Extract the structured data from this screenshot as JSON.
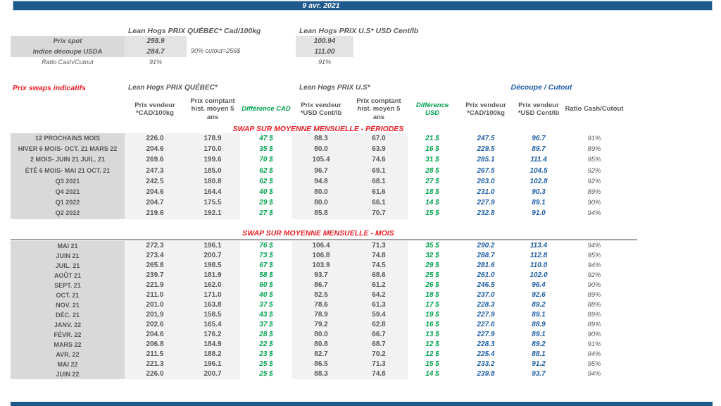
{
  "date": "9 avr. 2021",
  "summary": {
    "quebec_title": "Lean Hogs PRIX QUÉBEC* Cad/100kg",
    "us_title": "Lean Hogs PRIX U.S* USD Cent/lb",
    "spot_label": "Prix spot",
    "spot_qc": "258.9",
    "spot_us": "100.94",
    "cutout_label": "Indice découpe USDA",
    "cutout_qc": "284.7",
    "cutout_us": "111.00",
    "ratio_label": "Ratio Cash/Cutout",
    "ratio_qc": "91%",
    "ratio_us": "91%",
    "cutout_note": "90% cutout=256$"
  },
  "swaps": {
    "title": "Prix swaps indicatifs",
    "quebec_header": "Lean Hogs PRIX QUÉBEC*",
    "us_header": "Lean Hogs PRIX U.S*",
    "decoupe_header": "Découpe / Cutout",
    "columns": [
      "Prix vendeur *CAD/100kg",
      "Prix comptant hist. moyen 5 ans",
      "Différence CAD",
      "Prix vendeur *USD Cent/lb",
      "Prix comptant hist. moyen 5 ans",
      "Différence USD",
      "Prix vendeur *CAD/100kg",
      "Prix vendeur *USD Cent/lb",
      "Ratio Cash/Cutout"
    ],
    "sections": [
      {
        "banner": "SWAP SUR MOYENNE MENSUELLE - PÉRIODES",
        "rows": [
          [
            "12 PROCHAINS MOIS",
            "226.0",
            "178.9",
            "47 $",
            "88.3",
            "67.0",
            "21 $",
            "247.5",
            "96.7",
            "91%"
          ],
          [
            "HIVER 6 MOIS- OCT. 21 MARS 22",
            "204.6",
            "170.0",
            "35 $",
            "80.0",
            "63.9",
            "16 $",
            "229.5",
            "89.7",
            "89%"
          ],
          [
            "2 MOIS- JUIN 21 JUIL. 21",
            "269.6",
            "199.6",
            "70 $",
            "105.4",
            "74.6",
            "31 $",
            "285.1",
            "111.4",
            "95%"
          ],
          [
            "ÉTÉ 6 MOIS- MAI 21 OCT. 21",
            "247.3",
            "185.0",
            "62 $",
            "96.7",
            "69.1",
            "28 $",
            "267.5",
            "104.5",
            "92%"
          ],
          [
            "Q3 2021",
            "242.5",
            "180.8",
            "62 $",
            "94.8",
            "68.1",
            "27 $",
            "263.0",
            "102.8",
            "92%"
          ],
          [
            "Q4 2021",
            "204.6",
            "164.4",
            "40 $",
            "80.0",
            "61.6",
            "18 $",
            "231.0",
            "90.3",
            "89%"
          ],
          [
            "Q1 2022",
            "204.7",
            "175.5",
            "29 $",
            "80.0",
            "66.1",
            "14 $",
            "227.9",
            "89.1",
            "90%"
          ],
          [
            "Q2 2022",
            "219.6",
            "192.1",
            "27 $",
            "85.8",
            "70.7",
            "15 $",
            "232.8",
            "91.0",
            "94%"
          ]
        ]
      },
      {
        "banner": "SWAP SUR MOYENNE MENSUELLE - MOIS",
        "rows": [
          [
            "MAI 21",
            "272.3",
            "196.1",
            "76 $",
            "106.4",
            "71.3",
            "35 $",
            "290.2",
            "113.4",
            "94%"
          ],
          [
            "JUIN 21",
            "273.4",
            "200.7",
            "73 $",
            "106.8",
            "74.8",
            "32 $",
            "288.7",
            "112.8",
            "95%"
          ],
          [
            "JUIL. 21",
            "265.8",
            "198.5",
            "67 $",
            "103.9",
            "74.5",
            "29 $",
            "281.6",
            "110.0",
            "94%"
          ],
          [
            "AOÛT 21",
            "239.7",
            "181.9",
            "58 $",
            "93.7",
            "68.6",
            "25 $",
            "261.0",
            "102.0",
            "92%"
          ],
          [
            "SEPT. 21",
            "221.9",
            "162.0",
            "60 $",
            "86.7",
            "61.2",
            "26 $",
            "246.5",
            "96.4",
            "90%"
          ],
          [
            "OCT. 21",
            "211.0",
            "171.0",
            "40 $",
            "82.5",
            "64.2",
            "18 $",
            "237.0",
            "92.6",
            "89%"
          ],
          [
            "NOV. 21",
            "201.0",
            "163.8",
            "37 $",
            "78.6",
            "61.3",
            "17 $",
            "228.3",
            "89.2",
            "88%"
          ],
          [
            "DÉC. 21",
            "201.9",
            "158.5",
            "43 $",
            "78.9",
            "59.4",
            "19 $",
            "227.9",
            "89.1",
            "89%"
          ],
          [
            "JANV. 22",
            "202.6",
            "165.4",
            "37 $",
            "79.2",
            "62.8",
            "16 $",
            "227.6",
            "88.9",
            "89%"
          ],
          [
            "FÉVR. 22",
            "204.6",
            "176.2",
            "28 $",
            "80.0",
            "66.7",
            "13 $",
            "227.9",
            "89.1",
            "90%"
          ],
          [
            "MARS 22",
            "206.8",
            "184.9",
            "22 $",
            "80.8",
            "68.7",
            "12 $",
            "228.3",
            "89.2",
            "91%"
          ],
          [
            "AVR. 22",
            "211.5",
            "188.2",
            "23 $",
            "82.7",
            "70.2",
            "12 $",
            "225.4",
            "88.1",
            "94%"
          ],
          [
            "MAI 22",
            "221.3",
            "196.1",
            "25 $",
            "86.5",
            "71.3",
            "15 $",
            "233.2",
            "91.2",
            "95%"
          ],
          [
            "JUIN 22",
            "226.0",
            "200.7",
            "25 $",
            "88.3",
            "74.8",
            "14 $",
            "239.8",
            "93.7",
            "94%"
          ]
        ]
      }
    ]
  },
  "colors": {
    "bar_blue": "#1E5A8C",
    "red": "#ED1C24",
    "green": "#00A24F",
    "blue_text": "#1F5FA5",
    "label_gray": "#D9D9D9",
    "cell_gray": "#F2F2F2",
    "text_gray": "#595959"
  }
}
